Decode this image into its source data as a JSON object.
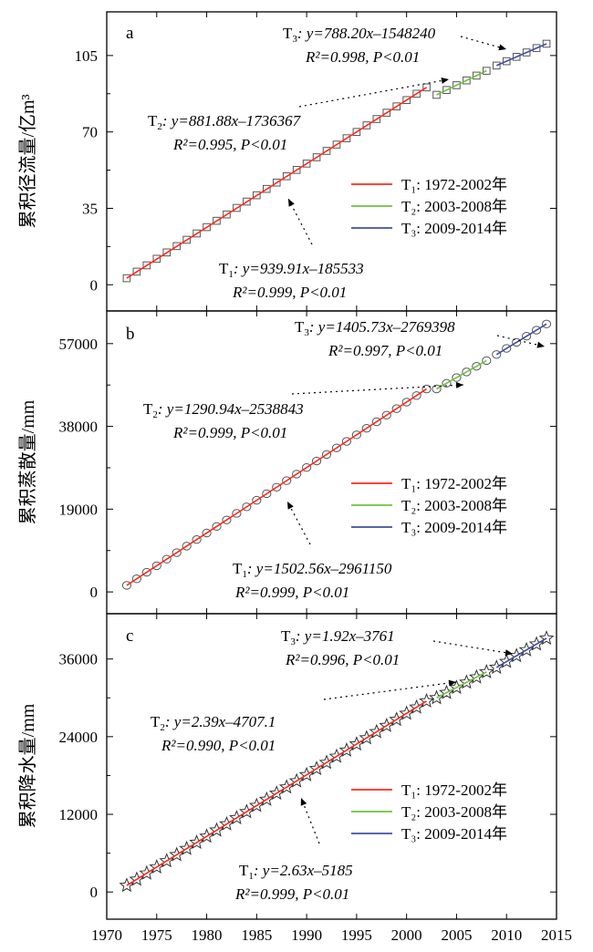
{
  "x_ticks": [
    "1970",
    "1975",
    "1980",
    "1985",
    "1990",
    "1995",
    "2000",
    "2005",
    "2010",
    "2015"
  ],
  "legend": [
    {
      "label": "T₁: 1972-2002年",
      "color": "#ff2a1a"
    },
    {
      "label": "T₂: 2003-2008年",
      "color": "#70c040"
    },
    {
      "label": "T₃: 2009-2014年",
      "color": "#3f4fa0"
    }
  ],
  "colors": {
    "t1": "#ff2a1a",
    "t2": "#70c040",
    "t3": "#3f4fa0",
    "marker_stroke": "#555555"
  },
  "chart_data": [
    {
      "type": "scatter",
      "panel_label": "a",
      "ylabel": "累积径流量/亿m³",
      "marker": "square",
      "xlim": [
        1970,
        2015
      ],
      "ylim": [
        -12,
        125
      ],
      "yticks": [
        "0",
        "35",
        "70",
        "105"
      ],
      "x": [
        1972,
        1973,
        1974,
        1975,
        1976,
        1977,
        1978,
        1979,
        1980,
        1981,
        1982,
        1983,
        1984,
        1985,
        1986,
        1987,
        1988,
        1989,
        1990,
        1991,
        1992,
        1993,
        1994,
        1995,
        1996,
        1997,
        1998,
        1999,
        2000,
        2001,
        2002,
        2003,
        2004,
        2005,
        2006,
        2007,
        2008,
        2009,
        2010,
        2011,
        2012,
        2013,
        2014
      ],
      "y": [
        3.0,
        6.0,
        8.9,
        11.9,
        14.8,
        17.7,
        20.6,
        23.5,
        26.4,
        29.3,
        32.2,
        35.2,
        38.1,
        41.0,
        43.9,
        46.8,
        49.7,
        52.6,
        55.5,
        58.4,
        61.3,
        64.2,
        67.1,
        70.0,
        73.0,
        75.9,
        78.8,
        81.7,
        84.6,
        87.5,
        90.4,
        87.0,
        89.2,
        91.4,
        93.6,
        95.8,
        98.0,
        100.4,
        102.4,
        104.4,
        106.4,
        108.4,
        110.4
      ],
      "series": [
        {
          "period": "T1",
          "x": [
            1972,
            2002
          ],
          "y": [
            3.0,
            90.4
          ]
        },
        {
          "period": "T2",
          "x": [
            2003,
            2008
          ],
          "y": [
            87.0,
            98.0
          ]
        },
        {
          "period": "T3",
          "x": [
            2009,
            2014
          ],
          "y": [
            100.4,
            110.4
          ]
        }
      ],
      "annotations": [
        {
          "id": "T3",
          "name": "T",
          "sub": "3",
          "line1": ": y=788.20x–1548240",
          "line2": "R²=0.998, P<0.01"
        },
        {
          "id": "T2",
          "name": "T",
          "sub": "2",
          "line1": ": y=881.88x–1736367",
          "line2": "R²=0.995, P<0.01"
        },
        {
          "id": "T1",
          "name": "T",
          "sub": "1",
          "line1": ": y=939.91x–185533",
          "line2": "R²=0.999, P<0.01"
        }
      ]
    },
    {
      "type": "scatter",
      "panel_label": "b",
      "ylabel": "累积蒸散量/mm",
      "marker": "circle",
      "xlim": [
        1970,
        2015
      ],
      "ylim": [
        -5000,
        64500
      ],
      "yticks": [
        "0",
        "19000",
        "38000",
        "57000"
      ],
      "x": [
        1972,
        1973,
        1974,
        1975,
        1976,
        1977,
        1978,
        1979,
        1980,
        1981,
        1982,
        1983,
        1984,
        1985,
        1986,
        1987,
        1988,
        1989,
        1990,
        1991,
        1992,
        1993,
        1994,
        1995,
        1996,
        1997,
        1998,
        1999,
        2000,
        2001,
        2002,
        2003,
        2004,
        2005,
        2006,
        2007,
        2008,
        2009,
        2010,
        2011,
        2012,
        2013,
        2014
      ],
      "y": [
        1503,
        3006,
        4508,
        6011,
        7514,
        9016,
        10519,
        12021,
        13524,
        15026,
        16529,
        18032,
        19534,
        21037,
        22539,
        24042,
        25544,
        27047,
        28550,
        30052,
        31555,
        33057,
        34560,
        36062,
        37565,
        39068,
        40570,
        42073,
        43575,
        45078,
        46580,
        46600,
        47900,
        49200,
        50500,
        51800,
        53100,
        54500,
        55900,
        57300,
        58700,
        60100,
        61500
      ],
      "series": [
        {
          "period": "T1",
          "x": [
            1972,
            2002
          ],
          "y": [
            1503,
            46580
          ]
        },
        {
          "period": "T2",
          "x": [
            2003,
            2008
          ],
          "y": [
            46600,
            53100
          ]
        },
        {
          "period": "T3",
          "x": [
            2009,
            2014
          ],
          "y": [
            54500,
            61500
          ]
        }
      ],
      "annotations": [
        {
          "id": "T3",
          "name": "T",
          "sub": "3",
          "line1": ": y=1405.73x–2769398",
          "line2": "R²=0.997, P<0.01"
        },
        {
          "id": "T2",
          "name": "T",
          "sub": "2",
          "line1": ": y=1290.94x–2538843",
          "line2": "R²=0.999, P<0.01"
        },
        {
          "id": "T1",
          "name": "T",
          "sub": "1",
          "line1": ": y=1502.56x–2961150",
          "line2": "R²=0.999, P<0.01"
        }
      ]
    },
    {
      "type": "scatter",
      "panel_label": "c",
      "ylabel": "累积降水量/mm",
      "marker": "star",
      "xlim": [
        1970,
        2015
      ],
      "ylim": [
        -4200,
        43000
      ],
      "yticks": [
        "0",
        "12000",
        "24000",
        "36000"
      ],
      "x": [
        1972,
        1973,
        1974,
        1975,
        1976,
        1977,
        1978,
        1979,
        1980,
        1981,
        1982,
        1983,
        1984,
        1985,
        1986,
        1987,
        1988,
        1989,
        1990,
        1991,
        1992,
        1993,
        1994,
        1995,
        1996,
        1997,
        1998,
        1999,
        2000,
        2001,
        2002,
        2003,
        2004,
        2005,
        2006,
        2007,
        2008,
        2009,
        2010,
        2011,
        2012,
        2013,
        2014
      ],
      "y": [
        1000,
        1950,
        2900,
        3850,
        4800,
        5750,
        6700,
        7650,
        8600,
        9550,
        10500,
        11450,
        12400,
        13350,
        14300,
        15250,
        16200,
        17150,
        18100,
        19050,
        20000,
        20950,
        21900,
        22850,
        23800,
        24750,
        25700,
        26650,
        27600,
        28550,
        29500,
        30000,
        30800,
        31600,
        32400,
        33200,
        34000,
        34700,
        35600,
        36500,
        37400,
        38300,
        39200
      ],
      "series": [
        {
          "period": "T1",
          "x": [
            1972,
            2002
          ],
          "y": [
            1000,
            29500
          ]
        },
        {
          "period": "T2",
          "x": [
            2003,
            2008
          ],
          "y": [
            30000,
            34000
          ]
        },
        {
          "period": "T3",
          "x": [
            2009,
            2014
          ],
          "y": [
            34700,
            39200
          ]
        }
      ],
      "annotations": [
        {
          "id": "T3",
          "name": "T",
          "sub": "3",
          "line1": ": y=1.92x–3761",
          "line2": "R²=0.996, P<0.01"
        },
        {
          "id": "T2",
          "name": "T",
          "sub": "2",
          "line1": ": y=2.39x–4707.1",
          "line2": "R²=0.990, P<0.01"
        },
        {
          "id": "T1",
          "name": "T",
          "sub": "1",
          "line1": ": y=2.63x–5185",
          "line2": "R²=0.999, P<0.01"
        }
      ]
    }
  ]
}
